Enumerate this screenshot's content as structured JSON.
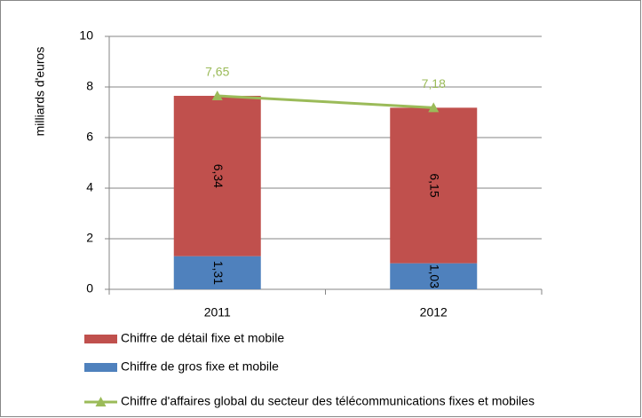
{
  "chart_data": {
    "type": "bar",
    "stacked": true,
    "categories": [
      "2011",
      "2012"
    ],
    "ylabel": "milliards d'euros",
    "ylim": [
      0,
      10
    ],
    "yticks": [
      0,
      2,
      4,
      6,
      8,
      10
    ],
    "grid": true,
    "series": [
      {
        "name": "Chiffre de gros fixe et mobile",
        "color": "#4f81bd",
        "values": [
          1.31,
          1.03
        ],
        "value_labels": [
          "1,31",
          "1,03"
        ]
      },
      {
        "name": "Chiffre de détail fixe et mobile",
        "color": "#c0504d",
        "values": [
          6.34,
          6.15
        ],
        "value_labels": [
          "6,34",
          "6,15"
        ]
      },
      {
        "name": "Chiffre d'affaires global du secteur des télécommunications fixes et mobiles",
        "type": "line",
        "color": "#9bbb59",
        "values": [
          7.65,
          7.18
        ],
        "value_labels": [
          "7,65",
          "7,18"
        ]
      }
    ]
  }
}
